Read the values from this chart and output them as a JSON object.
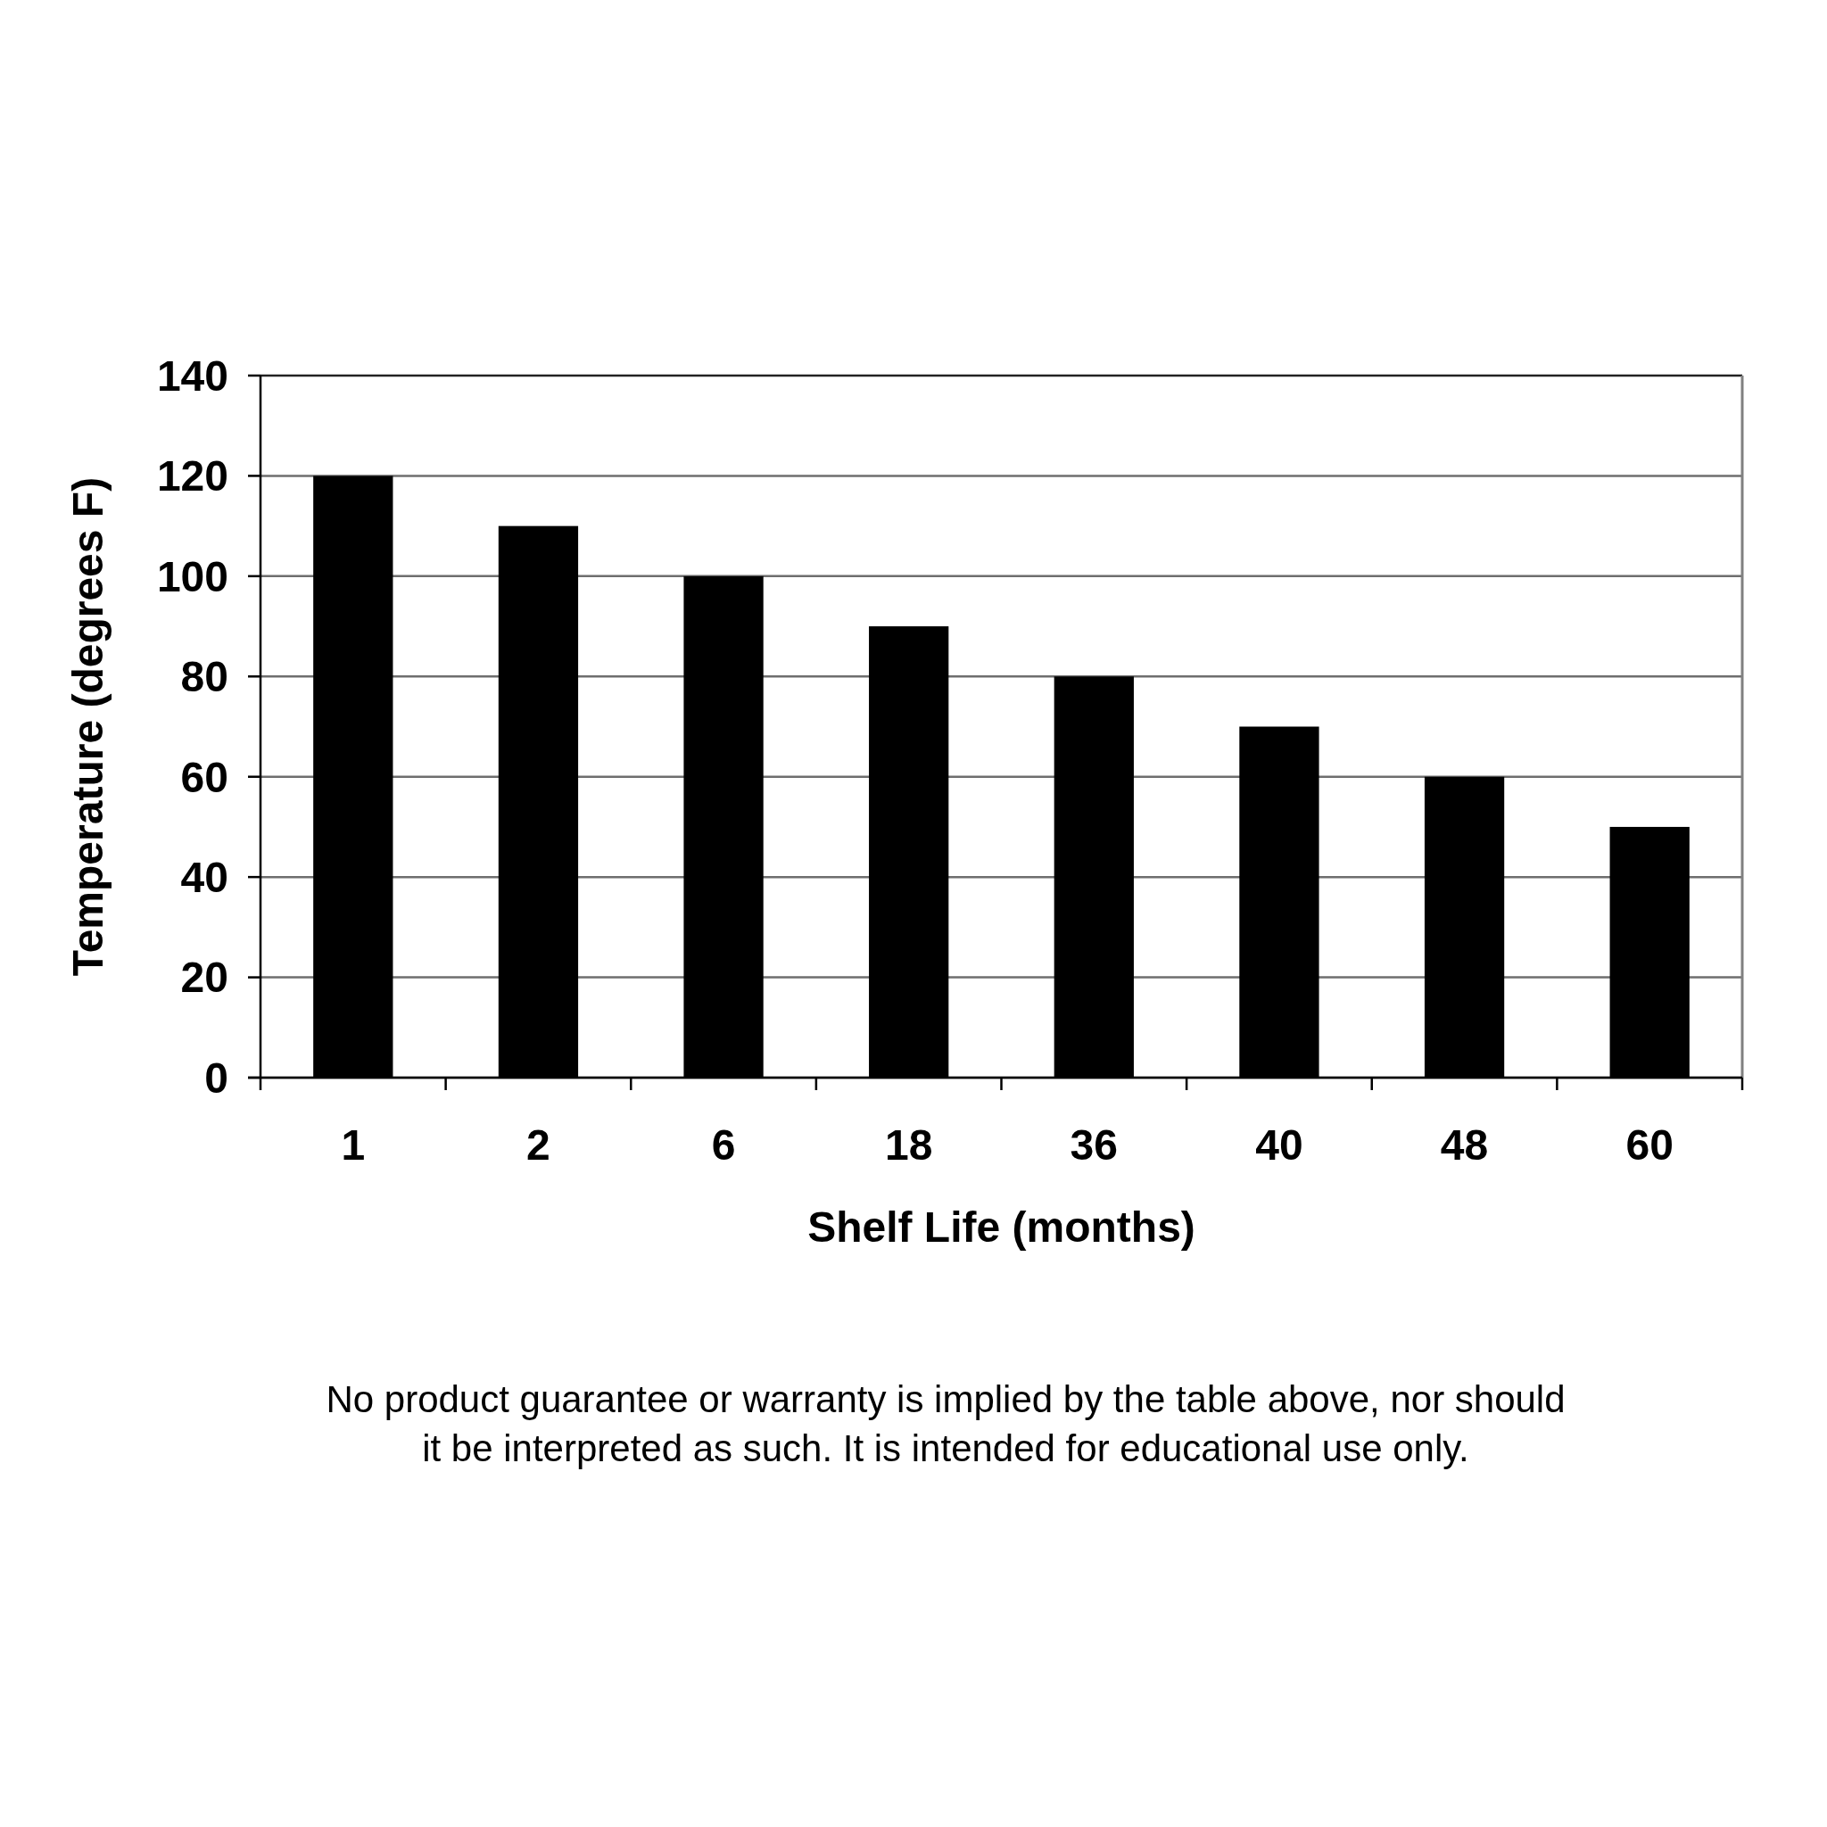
{
  "chart_data": {
    "type": "bar",
    "categories": [
      "1",
      "2",
      "6",
      "18",
      "36",
      "40",
      "48",
      "60"
    ],
    "values": [
      120,
      110,
      100,
      90,
      80,
      70,
      60,
      50
    ],
    "color": "#000000",
    "xlabel": "Shelf Life (months)",
    "ylabel": "Temperature (degrees F)",
    "ylim": [
      0,
      140
    ],
    "yticks": [
      0,
      20,
      40,
      60,
      80,
      100,
      120,
      140
    ],
    "grid": "y",
    "annotations": [
      "No product guarantee or warranty is implied by the table above, nor should it be interpreted as such. It is intended for educational use only."
    ]
  }
}
